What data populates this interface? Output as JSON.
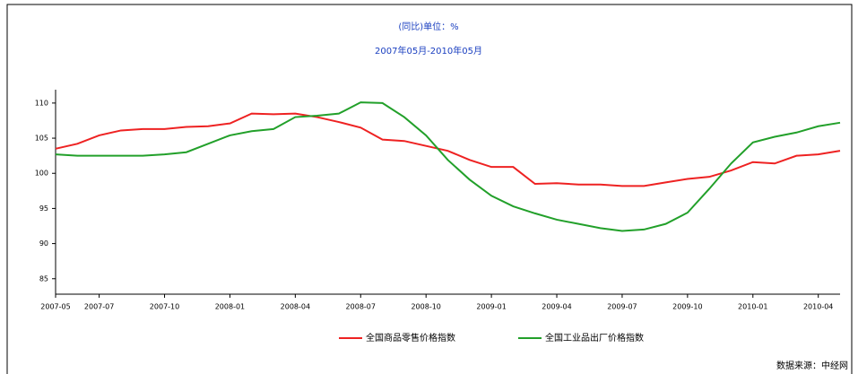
{
  "chart_data": {
    "type": "line",
    "title": "(同比)单位：%",
    "subtitle": "2007年05月-2010年05月",
    "categories": [
      "2007-05",
      null,
      "2007-07",
      null,
      null,
      "2007-10",
      null,
      null,
      "2008-01",
      null,
      null,
      "2008-04",
      null,
      null,
      "2008-07",
      null,
      null,
      "2008-10",
      null,
      null,
      "2009-01",
      null,
      null,
      "2009-04",
      null,
      null,
      "2009-07",
      null,
      null,
      "2009-10",
      null,
      null,
      "2010-01",
      null,
      null,
      "2010-04",
      null
    ],
    "series": [
      {
        "name": "全国商品零售价格指数",
        "color": "#ee2222",
        "values": [
          103.5,
          104.2,
          105.4,
          106.1,
          106.3,
          106.3,
          106.6,
          106.7,
          107.1,
          108.5,
          108.4,
          108.5,
          108.0,
          107.3,
          106.5,
          104.8,
          104.6,
          103.9,
          103.2,
          101.9,
          100.9,
          100.9,
          98.5,
          98.6,
          98.4,
          98.4,
          98.2,
          98.2,
          98.7,
          99.2,
          99.5,
          100.4,
          101.6,
          101.4,
          102.5,
          102.7,
          103.2
        ]
      },
      {
        "name": "全国工业品出厂价格指数",
        "color": "#22a02a",
        "values": [
          102.7,
          102.5,
          102.5,
          102.5,
          102.5,
          102.7,
          103.0,
          104.2,
          105.4,
          106.0,
          106.3,
          108.0,
          108.2,
          108.5,
          110.1,
          110.0,
          108.0,
          105.4,
          101.9,
          99.1,
          96.8,
          95.3,
          94.3,
          93.4,
          92.8,
          92.2,
          91.8,
          92.0,
          92.8,
          94.4,
          97.8,
          101.4,
          104.4,
          105.2,
          105.8,
          106.7,
          107.2
        ]
      }
    ],
    "ylim": [
      82.8,
      111.9
    ],
    "yticks": [
      85,
      90,
      95,
      100,
      105,
      110
    ],
    "source": "数据来源：中经网"
  }
}
